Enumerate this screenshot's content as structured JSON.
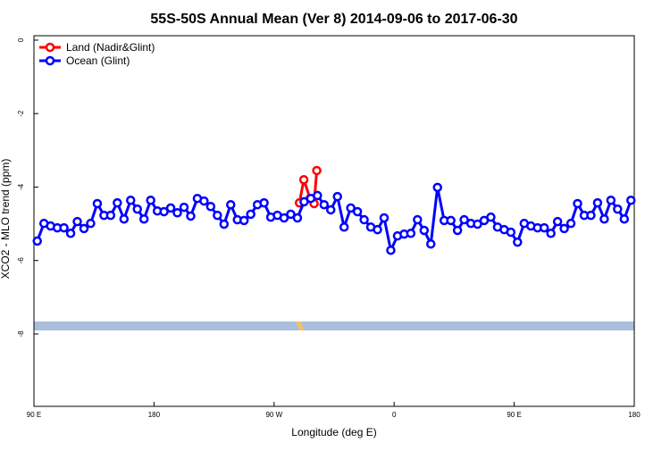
{
  "chart_data": {
    "type": "line",
    "title": "55S-50S Annual Mean (Ver 8)   2014-09-06 to 2017-06-30",
    "xlabel": "Longitude (deg E)",
    "ylabel": "XCO2 - MLO trend (ppm)",
    "xlim": [
      90,
      540
    ],
    "ylim": [
      -9.97,
      0.12
    ],
    "xticks": [
      {
        "value": 90,
        "label": "90 E"
      },
      180,
      {
        "value": 270,
        "label": "90 W"
      },
      {
        "value": 360,
        "label": "0"
      },
      {
        "value": 450,
        "label": "90 E"
      },
      {
        "value": 540,
        "label": "180"
      }
    ],
    "yticks": [
      0,
      -2,
      -4,
      -6,
      -8
    ],
    "legend": "upper left",
    "series": [
      {
        "name": "Land (Nadir&Glint)",
        "color": "#ff0000",
        "x": [
          289,
          292.3,
          297,
          300,
          302
        ],
        "values": [
          -4.43,
          -3.8,
          -4.31,
          -4.45,
          -3.55
        ]
      },
      {
        "name": "Ocean (Glint)",
        "color": "#0000ff",
        "x": [
          92.5,
          97.5,
          102.5,
          107.5,
          112.5,
          117.5,
          122.5,
          127.5,
          132.5,
          137.5,
          142.5,
          147.5,
          152.5,
          157.5,
          162.5,
          167.5,
          172.5,
          177.5,
          182.5,
          187.5,
          192.5,
          197.5,
          202.5,
          207.5,
          212.5,
          217.5,
          222.5,
          227.5,
          232.5,
          237.5,
          242.5,
          247.5,
          252.5,
          257.5,
          262.5,
          267.5,
          272.5,
          277.5,
          282.5,
          287.5,
          292.5,
          297.5,
          302.5,
          307.5,
          312.5,
          317.5,
          322.5,
          327.5,
          332.5,
          337.5,
          342.5,
          347.5,
          352.5,
          357.5,
          362.5,
          367.5,
          372.5,
          377.5,
          382.5,
          387.5,
          392.5,
          397.5,
          402.5,
          407.5,
          412.5,
          417.5,
          422.5,
          427.5,
          432.5,
          437.5,
          442.5,
          447.5,
          452.5,
          457.5,
          462.5,
          467.5,
          472.5,
          477.5,
          482.5,
          487.5,
          492.5,
          497.5,
          502.5,
          507.5,
          512.5,
          517.5,
          522.5,
          527.5,
          532.5,
          537.5
        ],
        "values": [
          -5.47,
          -4.99,
          -5.06,
          -5.11,
          -5.11,
          -5.26,
          -4.94,
          -5.13,
          -4.99,
          -4.45,
          -4.77,
          -4.77,
          -4.43,
          -4.87,
          -4.36,
          -4.6,
          -4.87,
          -4.36,
          -4.65,
          -4.67,
          -4.57,
          -4.7,
          -4.55,
          -4.79,
          -4.31,
          -4.38,
          -4.53,
          -4.77,
          -5.01,
          -4.48,
          -4.89,
          -4.91,
          -4.74,
          -4.48,
          -4.43,
          -4.82,
          -4.77,
          -4.84,
          -4.74,
          -4.84,
          -4.4,
          -4.31,
          -4.23,
          -4.48,
          -4.62,
          -4.26,
          -5.09,
          -4.57,
          -4.67,
          -4.89,
          -5.09,
          -5.16,
          -4.84,
          -5.72,
          -5.33,
          -5.28,
          -5.26,
          -4.89,
          -5.18,
          -5.55,
          -4.01,
          -4.91,
          -4.91,
          -5.18,
          -4.89,
          -4.99,
          -5.01,
          -4.91,
          -4.82,
          -5.09,
          -5.16,
          -5.23,
          -5.5,
          -4.99,
          -5.06,
          -5.11,
          -5.11,
          -5.26,
          -4.94,
          -5.13,
          -4.99,
          -4.45,
          -4.77,
          -4.77,
          -4.43,
          -4.87,
          -4.36,
          -4.6,
          -4.87,
          -4.36
        ]
      }
    ]
  }
}
